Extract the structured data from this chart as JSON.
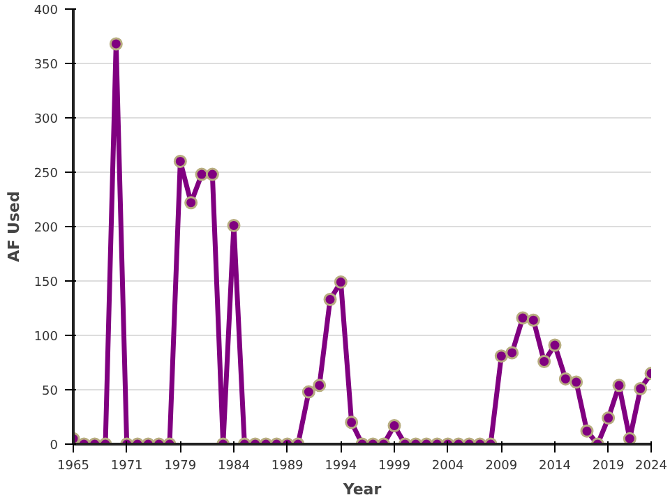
{
  "chart_data": {
    "type": "line",
    "xlabel": "Year",
    "ylabel": "AF Used",
    "categories": [
      "1965",
      null,
      null,
      null,
      null,
      "1971",
      null,
      null,
      null,
      null,
      "1979",
      null,
      null,
      null,
      null,
      "1984",
      null,
      null,
      null,
      null,
      "1989",
      null,
      null,
      null,
      null,
      "1994",
      null,
      null,
      null,
      null,
      "1999",
      null,
      null,
      null,
      null,
      "2004",
      null,
      null,
      null,
      null,
      "2009",
      null,
      null,
      null,
      null,
      "2014",
      null,
      null,
      null,
      null,
      "2019",
      null,
      null,
      null,
      "2024"
    ],
    "series": [
      {
        "color": "#800080",
        "values": [
          5,
          0,
          0,
          0,
          368,
          0,
          0,
          0,
          0,
          0,
          260,
          222,
          248,
          248,
          0,
          201,
          0,
          0,
          0,
          0,
          0,
          0,
          48,
          54,
          133,
          149,
          20,
          0,
          0,
          0,
          17,
          0,
          0,
          0,
          0,
          0,
          0,
          0,
          0,
          0,
          81,
          84,
          116,
          114,
          76,
          91,
          60,
          57,
          12,
          0,
          24,
          54,
          5,
          51,
          65
        ]
      }
    ],
    "ylim": [
      0,
      400
    ],
    "yticks": [
      0,
      50,
      100,
      150,
      200,
      250,
      300,
      350,
      400
    ],
    "grid": "y",
    "marker": "circle",
    "line_style": "solid"
  }
}
